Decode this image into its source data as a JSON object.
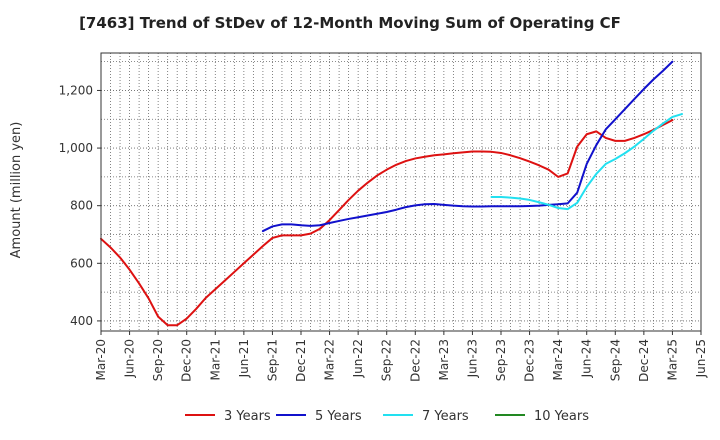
{
  "chart_data": {
    "type": "line",
    "title": "[7463]  Trend of StDev of 12-Month Moving Sum of Operating CF",
    "xlabel": "",
    "ylabel": "Amount (million yen)",
    "ylim": [
      365,
      1330
    ],
    "yticks": [
      400,
      600,
      800,
      1000,
      1200
    ],
    "ytick_labels": [
      "400",
      "600",
      "800",
      "1,000",
      "1,200"
    ],
    "x_range": [
      "Mar-20",
      "Jun-25"
    ],
    "xtick_labels": [
      "Mar-20",
      "Jun-20",
      "Sep-20",
      "Dec-20",
      "Mar-21",
      "Jun-21",
      "Sep-21",
      "Dec-21",
      "Mar-22",
      "Jun-22",
      "Sep-22",
      "Dec-22",
      "Mar-23",
      "Jun-23",
      "Sep-23",
      "Dec-23",
      "Mar-24",
      "Jun-24",
      "Sep-24",
      "Dec-24",
      "Mar-25",
      "Jun-25"
    ],
    "grid": true,
    "legend_position": "bottom",
    "series": [
      {
        "name": "3 Years",
        "color": "#dd1111",
        "points": [
          [
            "Mar-20",
            685
          ],
          [
            "Apr-20",
            655
          ],
          [
            "May-20",
            620
          ],
          [
            "Jun-20",
            578
          ],
          [
            "Jul-20",
            530
          ],
          [
            "Aug-20",
            478
          ],
          [
            "Sep-20",
            415
          ],
          [
            "Oct-20",
            385
          ],
          [
            "Nov-20",
            385
          ],
          [
            "Dec-20",
            408
          ],
          [
            "Jan-21",
            442
          ],
          [
            "Feb-21",
            480
          ],
          [
            "Mar-21",
            510
          ],
          [
            "Apr-21",
            540
          ],
          [
            "May-21",
            570
          ],
          [
            "Jun-21",
            600
          ],
          [
            "Jul-21",
            630
          ],
          [
            "Aug-21",
            660
          ],
          [
            "Sep-21",
            688
          ],
          [
            "Oct-21",
            697
          ],
          [
            "Nov-21",
            697
          ],
          [
            "Dec-21",
            697
          ],
          [
            "Jan-22",
            703
          ],
          [
            "Feb-22",
            720
          ],
          [
            "Mar-22",
            750
          ],
          [
            "Apr-22",
            785
          ],
          [
            "May-22",
            820
          ],
          [
            "Jun-22",
            852
          ],
          [
            "Jul-22",
            880
          ],
          [
            "Aug-22",
            905
          ],
          [
            "Sep-22",
            925
          ],
          [
            "Oct-22",
            942
          ],
          [
            "Nov-22",
            955
          ],
          [
            "Dec-22",
            964
          ],
          [
            "Jan-23",
            970
          ],
          [
            "Feb-23",
            975
          ],
          [
            "Mar-23",
            978
          ],
          [
            "Apr-23",
            982
          ],
          [
            "May-23",
            985
          ],
          [
            "Jun-23",
            988
          ],
          [
            "Jul-23",
            988
          ],
          [
            "Aug-23",
            987
          ],
          [
            "Sep-23",
            983
          ],
          [
            "Oct-23",
            975
          ],
          [
            "Nov-23",
            965
          ],
          [
            "Dec-23",
            953
          ],
          [
            "Jan-24",
            940
          ],
          [
            "Feb-24",
            925
          ],
          [
            "Mar-24",
            900
          ],
          [
            "Apr-24",
            912
          ],
          [
            "May-24",
            1005
          ],
          [
            "Jun-24",
            1048
          ],
          [
            "Jul-24",
            1058
          ],
          [
            "Aug-24",
            1035
          ],
          [
            "Sep-24",
            1025
          ],
          [
            "Oct-24",
            1025
          ],
          [
            "Nov-24",
            1035
          ],
          [
            "Dec-24",
            1048
          ],
          [
            "Jan-25",
            1063
          ],
          [
            "Feb-25",
            1080
          ],
          [
            "Mar-25",
            1097
          ]
        ]
      },
      {
        "name": "5 Years",
        "color": "#1111cc",
        "points": [
          [
            "Aug-21",
            712
          ],
          [
            "Sep-21",
            728
          ],
          [
            "Oct-21",
            735
          ],
          [
            "Nov-21",
            735
          ],
          [
            "Dec-21",
            732
          ],
          [
            "Jan-22",
            730
          ],
          [
            "Feb-22",
            732
          ],
          [
            "Mar-22",
            740
          ],
          [
            "Apr-22",
            747
          ],
          [
            "May-22",
            754
          ],
          [
            "Jun-22",
            760
          ],
          [
            "Jul-22",
            766
          ],
          [
            "Aug-22",
            772
          ],
          [
            "Sep-22",
            778
          ],
          [
            "Oct-22",
            786
          ],
          [
            "Nov-22",
            795
          ],
          [
            "Dec-22",
            801
          ],
          [
            "Jan-23",
            805
          ],
          [
            "Feb-23",
            806
          ],
          [
            "Mar-23",
            803
          ],
          [
            "Apr-23",
            800
          ],
          [
            "May-23",
            798
          ],
          [
            "Jun-23",
            797
          ],
          [
            "Jul-23",
            797
          ],
          [
            "Aug-23",
            798
          ],
          [
            "Sep-23",
            798
          ],
          [
            "Oct-23",
            798
          ],
          [
            "Nov-23",
            798
          ],
          [
            "Dec-23",
            799
          ],
          [
            "Jan-24",
            800
          ],
          [
            "Feb-24",
            803
          ],
          [
            "Mar-24",
            805
          ],
          [
            "Apr-24",
            808
          ],
          [
            "May-24",
            845
          ],
          [
            "Jun-24",
            945
          ],
          [
            "Jul-24",
            1010
          ],
          [
            "Aug-24",
            1065
          ],
          [
            "Sep-24",
            1100
          ],
          [
            "Oct-24",
            1135
          ],
          [
            "Nov-24",
            1170
          ],
          [
            "Dec-24",
            1205
          ],
          [
            "Jan-25",
            1238
          ],
          [
            "Feb-25",
            1268
          ],
          [
            "Mar-25",
            1300
          ]
        ]
      },
      {
        "name": "7 Years",
        "color": "#22e0f0",
        "points": [
          [
            "Aug-23",
            830
          ],
          [
            "Sep-23",
            830
          ],
          [
            "Oct-23",
            828
          ],
          [
            "Nov-23",
            825
          ],
          [
            "Dec-23",
            820
          ],
          [
            "Jan-24",
            812
          ],
          [
            "Feb-24",
            803
          ],
          [
            "Mar-24",
            792
          ],
          [
            "Apr-24",
            788
          ],
          [
            "May-24",
            810
          ],
          [
            "Jun-24",
            865
          ],
          [
            "Jul-24",
            910
          ],
          [
            "Aug-24",
            945
          ],
          [
            "Sep-24",
            962
          ],
          [
            "Oct-24",
            982
          ],
          [
            "Nov-24",
            1005
          ],
          [
            "Dec-24",
            1032
          ],
          [
            "Jan-25",
            1060
          ],
          [
            "Feb-25",
            1085
          ],
          [
            "Mar-25",
            1108
          ],
          [
            "Apr-25",
            1118
          ]
        ]
      },
      {
        "name": "10 Years",
        "color": "#228822",
        "points": []
      }
    ]
  }
}
